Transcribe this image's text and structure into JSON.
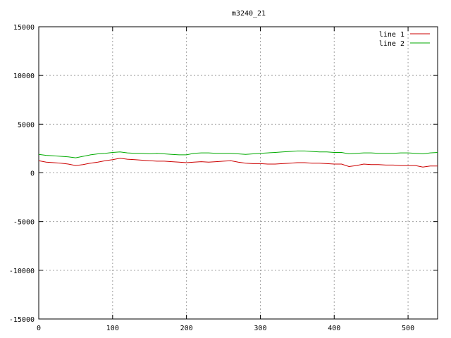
{
  "chart_data": {
    "type": "line",
    "title": "m3240_21",
    "xlabel": "",
    "ylabel": "",
    "xlim": [
      0,
      540
    ],
    "ylim": [
      -15000,
      15000
    ],
    "x_ticks": [
      0,
      100,
      200,
      300,
      400,
      500
    ],
    "y_ticks": [
      -15000,
      -10000,
      -5000,
      0,
      5000,
      10000,
      15000
    ],
    "grid": true,
    "legend_position": "top-right",
    "series": [
      {
        "name": "line 1",
        "color": "#cc0000",
        "x": [
          0,
          10,
          20,
          30,
          40,
          50,
          60,
          70,
          80,
          90,
          100,
          110,
          120,
          130,
          140,
          150,
          160,
          170,
          180,
          190,
          200,
          210,
          220,
          230,
          240,
          250,
          260,
          270,
          280,
          290,
          300,
          310,
          320,
          330,
          340,
          350,
          360,
          370,
          380,
          390,
          400,
          410,
          420,
          430,
          440,
          450,
          460,
          470,
          480,
          490,
          500,
          510,
          520,
          530,
          540
        ],
        "values": [
          1250,
          1100,
          1050,
          1000,
          900,
          750,
          850,
          1000,
          1100,
          1250,
          1350,
          1500,
          1400,
          1350,
          1300,
          1250,
          1200,
          1200,
          1150,
          1100,
          1050,
          1100,
          1150,
          1100,
          1150,
          1200,
          1250,
          1100,
          1000,
          950,
          950,
          900,
          900,
          950,
          1000,
          1050,
          1050,
          1000,
          1000,
          950,
          900,
          900,
          650,
          750,
          900,
          850,
          850,
          800,
          800,
          750,
          750,
          750,
          600,
          700,
          700
        ]
      },
      {
        "name": "line 2",
        "color": "#00aa00",
        "x": [
          0,
          10,
          20,
          30,
          40,
          50,
          60,
          70,
          80,
          90,
          100,
          110,
          120,
          130,
          140,
          150,
          160,
          170,
          180,
          190,
          200,
          210,
          220,
          230,
          240,
          250,
          260,
          270,
          280,
          290,
          300,
          310,
          320,
          330,
          340,
          350,
          360,
          370,
          380,
          390,
          400,
          410,
          420,
          430,
          440,
          450,
          460,
          470,
          480,
          490,
          500,
          510,
          520,
          530,
          540
        ],
        "values": [
          1900,
          1800,
          1750,
          1700,
          1650,
          1550,
          1700,
          1850,
          1950,
          2000,
          2100,
          2150,
          2050,
          2000,
          2000,
          1950,
          2000,
          1950,
          1900,
          1850,
          1850,
          2000,
          2050,
          2050,
          2000,
          2000,
          2000,
          1950,
          1900,
          1950,
          2000,
          2050,
          2100,
          2150,
          2200,
          2250,
          2250,
          2200,
          2150,
          2150,
          2100,
          2100,
          1950,
          2000,
          2050,
          2050,
          2000,
          2000,
          2000,
          2050,
          2050,
          2000,
          1950,
          2050,
          2100
        ]
      }
    ]
  }
}
